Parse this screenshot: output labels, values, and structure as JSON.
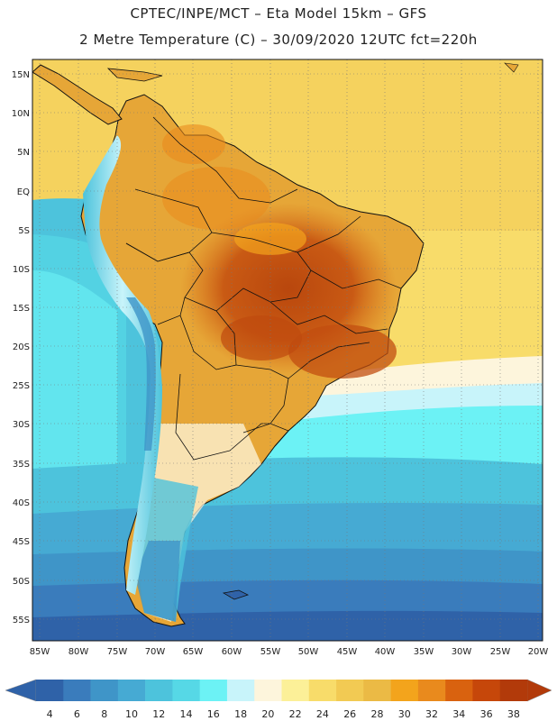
{
  "header": {
    "title_line1": "CPTEC/INPE/MCT –  Eta Model 15km – GFS",
    "title_line2": "2 Metre Temperature (C) – 30/09/2020 12UTC fct=220h"
  },
  "map": {
    "region": "South America",
    "variable": "2 Metre Temperature",
    "units": "C",
    "lat_labels": [
      "15N",
      "10N",
      "5N",
      "EQ",
      "5S",
      "10S",
      "15S",
      "20S",
      "25S",
      "30S",
      "35S",
      "40S",
      "45S",
      "50S",
      "55S"
    ],
    "lon_labels": [
      "85W",
      "80W",
      "75W",
      "70W",
      "65W",
      "60W",
      "55W",
      "50W",
      "45W",
      "40W",
      "35W",
      "30W",
      "25W",
      "20W"
    ]
  },
  "colorbar": {
    "labels": [
      "4",
      "6",
      "8",
      "10",
      "12",
      "14",
      "16",
      "18",
      "20",
      "22",
      "24",
      "26",
      "28",
      "30",
      "32",
      "34",
      "36",
      "38"
    ],
    "colors": [
      "#2f62a8",
      "#3a7cbc",
      "#3f95c8",
      "#46aad3",
      "#4dc3dc",
      "#56d8e6",
      "#6cf2f5",
      "#c8f4fa",
      "#fdf5dc",
      "#fcf098",
      "#f8dc6a",
      "#f2ca53",
      "#ebba45",
      "#f3a41c",
      "#e98a1d",
      "#d9620f",
      "#c6470a",
      "#b23a0a"
    ]
  }
}
